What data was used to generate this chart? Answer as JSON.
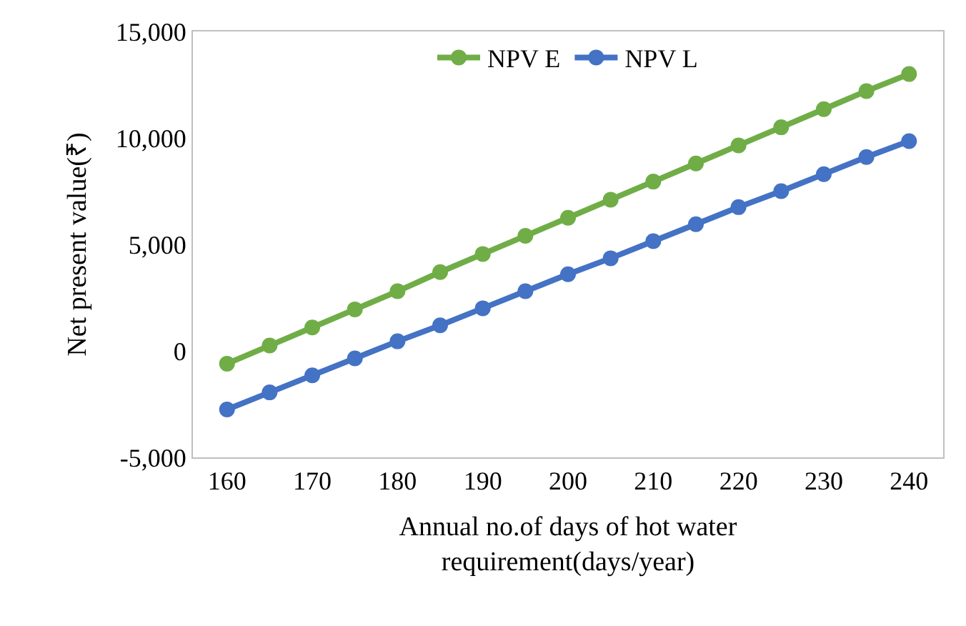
{
  "chart_data": {
    "type": "line",
    "xlabel": "Annual no.of days of hot water requirement(days/year)",
    "ylabel": "Net present value(₹)",
    "x": [
      160,
      165,
      170,
      175,
      180,
      185,
      190,
      195,
      200,
      205,
      210,
      215,
      220,
      225,
      230,
      235,
      240
    ],
    "series": [
      {
        "name": "NPV E",
        "color": "#70ad47",
        "values": [
          -600,
          250,
          1100,
          1950,
          2800,
          3700,
          4550,
          5400,
          6250,
          7100,
          7950,
          8800,
          9650,
          10500,
          11350,
          12200,
          13000
        ]
      },
      {
        "name": "NPV L",
        "color": "#4472c4",
        "values": [
          -2750,
          -1950,
          -1150,
          -350,
          450,
          1200,
          2000,
          2800,
          3600,
          4350,
          5150,
          5950,
          6750,
          7500,
          8300,
          9100,
          9850
        ]
      }
    ],
    "xlim": [
      156,
      244
    ],
    "xticks": [
      160,
      170,
      180,
      190,
      200,
      210,
      220,
      230,
      240
    ],
    "ylim": [
      -5000,
      15000
    ],
    "yticks": [
      {
        "value": -5000,
        "label": "-5,000"
      },
      0,
      {
        "value": 5000,
        "label": "5,000"
      },
      {
        "value": 10000,
        "label": "10,000"
      },
      {
        "value": 15000,
        "label": "15,000"
      }
    ],
    "grid": false,
    "legend": "top",
    "marker": "circle",
    "line_style": "solid"
  }
}
